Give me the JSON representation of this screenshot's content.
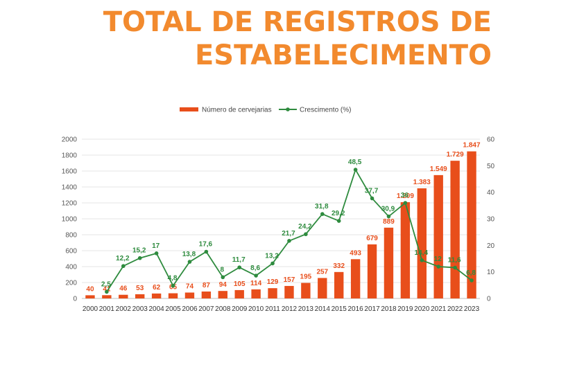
{
  "title_line1": "TOTAL DE REGISTROS DE",
  "title_line2": "ESTABELECIMENTO",
  "chart_data": {
    "type": "bar",
    "categories": [
      "2000",
      "2001",
      "2002",
      "2003",
      "2004",
      "2005",
      "2006",
      "2007",
      "2008",
      "2009",
      "2010",
      "2011",
      "2012",
      "2013",
      "2014",
      "2015",
      "2016",
      "2017",
      "2018",
      "2019",
      "2020",
      "2021",
      "2022",
      "2023"
    ],
    "series": [
      {
        "name": "Número de cervejarias",
        "type": "bar",
        "axis": "left",
        "color": "#e84e1b",
        "values": [
          40,
          41,
          46,
          53,
          62,
          65,
          74,
          87,
          94,
          105,
          114,
          129,
          157,
          195,
          257,
          332,
          493,
          679,
          889,
          1209,
          1383,
          1549,
          1729,
          1847
        ],
        "labels": [
          "40",
          "41",
          "46",
          "53",
          "62",
          "65",
          "74",
          "87",
          "94",
          "105",
          "114",
          "129",
          "157",
          "195",
          "257",
          "332",
          "493",
          "679",
          "889",
          "1.209",
          "1.383",
          "1.549",
          "1.729",
          "1.847"
        ]
      },
      {
        "name": "Crescimento (%)",
        "type": "line",
        "axis": "right",
        "color": "#2e8b3e",
        "values": [
          null,
          2.5,
          12.2,
          15.2,
          17,
          4.8,
          13.8,
          17.6,
          8,
          11.7,
          8.6,
          13.2,
          21.7,
          24.2,
          31.8,
          29.2,
          48.5,
          37.7,
          30.9,
          36,
          14.4,
          12,
          11.6,
          6.8
        ],
        "labels": [
          "",
          "2,5",
          "12,2",
          "15,2",
          "17",
          "4,8",
          "13,8",
          "17,6",
          "8",
          "11,7",
          "8,6",
          "13,2",
          "21,7",
          "24,2",
          "31,8",
          "29,2",
          "48,5",
          "37,7",
          "30,9",
          "36",
          "14,4",
          "12",
          "11,6",
          "6,8"
        ]
      }
    ],
    "ylim_left": [
      0,
      2000
    ],
    "yticks_left": [
      "0",
      "200",
      "400",
      "600",
      "800",
      "1000",
      "1200",
      "1400",
      "1600",
      "1800",
      "2000"
    ],
    "ylim_right": [
      0,
      60
    ],
    "yticks_right": [
      "0",
      "10",
      "20",
      "30",
      "40",
      "50",
      "60"
    ],
    "legend_position": "top-center",
    "grid": true
  }
}
